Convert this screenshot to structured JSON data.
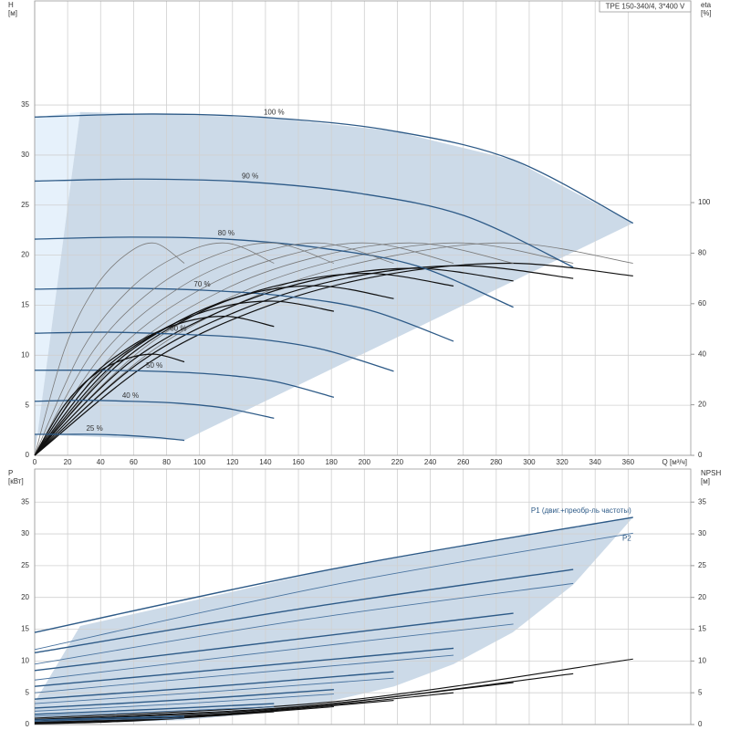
{
  "chart_data": [
    {
      "type": "line",
      "title": "TPE 150-340/4, 3*400 V",
      "ylabel": [
        "H",
        "[м]"
      ],
      "y2label": [
        "eta",
        "[%]"
      ],
      "xlabel": "Q [м³/ч]",
      "xlim": [
        0,
        398
      ],
      "xticks": [
        0,
        20,
        40,
        60,
        80,
        100,
        120,
        140,
        160,
        180,
        200,
        220,
        240,
        260,
        280,
        300,
        320,
        340,
        360
      ],
      "ylim": [
        0,
        45.4
      ],
      "yticks": [
        0,
        5,
        10,
        15,
        20,
        25,
        30,
        35
      ],
      "y2lim": [
        0,
        179.8
      ],
      "y2ticks": [
        0,
        20,
        40,
        60,
        80,
        100
      ],
      "grid": true,
      "curve_color": "#2d5a87",
      "eta_color": "#7a7a7a",
      "eta_total_color": "#111111",
      "envelope_color": "#c7d6e5",
      "min_zone_color": "#e6f1fb",
      "envelope": {
        "x": [
          0,
          27.6,
          72.6,
          145.2,
          217.8,
          290.4,
          363,
          90.8,
          0
        ],
        "values": [
          0,
          34.3,
          34.1,
          33.7,
          32.4,
          29.5,
          23.2,
          1.5,
          2.1
        ]
      },
      "min_zone": {
        "x": [
          0,
          0,
          27.6
        ],
        "values": [
          0,
          33.8,
          34.3
        ]
      },
      "series": [
        {
          "name": "100 %",
          "x": [
            0,
            72.6,
            145.2,
            217.8,
            290.4,
            363
          ],
          "values": [
            33.8,
            34.1,
            33.7,
            32.4,
            29.5,
            23.2
          ],
          "eta": [
            0,
            42,
            66,
            79,
            84,
            76
          ],
          "eta_total": [
            0,
            38,
            60,
            72,
            76,
            71
          ]
        },
        {
          "name": "90 %",
          "x": [
            0,
            65.3,
            130.7,
            196,
            261.4,
            326.7
          ],
          "values": [
            27.4,
            27.6,
            27.3,
            26.2,
            23.9,
            18.8
          ],
          "eta": [
            0,
            42,
            66,
            79,
            84,
            76
          ],
          "eta_total": [
            0,
            37.5,
            59,
            71,
            75,
            70
          ]
        },
        {
          "name": "80 %",
          "x": [
            0,
            58.1,
            116.2,
            174.2,
            232.3,
            290.4
          ],
          "values": [
            21.6,
            21.8,
            21.6,
            20.7,
            18.9,
            14.8
          ],
          "eta": [
            0,
            42,
            66,
            79,
            84,
            76
          ],
          "eta_total": [
            0,
            37,
            58,
            70,
            74,
            69
          ]
        },
        {
          "name": "70 %",
          "x": [
            0,
            50.8,
            101.6,
            152.5,
            203.3,
            254.1
          ],
          "values": [
            16.6,
            16.7,
            16.5,
            15.9,
            14.5,
            11.4
          ],
          "eta": [
            0,
            42,
            66,
            79,
            84,
            76
          ],
          "eta_total": [
            0,
            36,
            57,
            68,
            72,
            67
          ]
        },
        {
          "name": "60 %",
          "x": [
            0,
            43.6,
            87.1,
            130.7,
            174.2,
            217.8
          ],
          "values": [
            12.2,
            12.3,
            12.1,
            11.7,
            10.6,
            8.4
          ],
          "eta": [
            0,
            42,
            66,
            79,
            84,
            76
          ],
          "eta_total": [
            0,
            33.5,
            53,
            64,
            67,
            62
          ]
        },
        {
          "name": "50 %",
          "x": [
            0,
            36.3,
            72.6,
            108.9,
            145.2,
            181.5
          ],
          "values": [
            8.5,
            8.5,
            8.4,
            8.1,
            7.4,
            5.8
          ],
          "eta": [
            0,
            42,
            66,
            79,
            84,
            76
          ],
          "eta_total": [
            0,
            30.5,
            48,
            58,
            61,
            57
          ]
        },
        {
          "name": "40 %",
          "x": [
            0,
            29.0,
            58.1,
            87.1,
            116.2,
            145.2
          ],
          "values": [
            5.4,
            5.5,
            5.4,
            5.2,
            4.7,
            3.7
          ],
          "eta": [
            0,
            42,
            66,
            79,
            84,
            76
          ],
          "eta_total": [
            0,
            27.5,
            43,
            52,
            55,
            51
          ]
        },
        {
          "name": "25 %",
          "x": [
            0,
            18.2,
            36.3,
            54.5,
            72.6,
            90.8
          ],
          "values": [
            2.1,
            2.1,
            2.1,
            2.0,
            1.8,
            1.5
          ],
          "eta": [
            0,
            42,
            66,
            79,
            84,
            76
          ],
          "eta_total": [
            0,
            20,
            32,
            38,
            40,
            37
          ]
        }
      ]
    },
    {
      "type": "line",
      "ylabel": [
        "P",
        "[кВт]"
      ],
      "y2label": [
        "NPSH",
        "[м]"
      ],
      "xlim": [
        0,
        398
      ],
      "ylim": [
        0,
        40.2
      ],
      "yticks": [
        0,
        5,
        10,
        15,
        20,
        25,
        30,
        35
      ],
      "y2lim": [
        0,
        40.2
      ],
      "y2ticks": [
        0,
        5,
        10,
        15,
        20,
        25,
        30,
        35
      ],
      "grid": true,
      "p1_color": "#2d5a87",
      "p2_color": "#4a74a0",
      "npsh_color": "#111111",
      "envelope_color": "#c7d6e5",
      "annotations": [
        "P1 (двиг.+преобр-ль частоты)",
        "P2"
      ],
      "envelope": {
        "x": [
          0,
          0,
          27.6,
          181.5,
          363,
          326.7,
          290,
          254,
          218,
          181.5,
          145,
          91
        ],
        "values": [
          0,
          3.5,
          15.5,
          24.5,
          32.6,
          22,
          14.5,
          9.5,
          6,
          3.8,
          2.0,
          0.7
        ]
      },
      "series": [
        {
          "x": [
            0,
            181.5,
            363
          ],
          "p1": [
            14.5,
            24.5,
            32.6
          ],
          "p2": [
            11.8,
            22,
            30.1
          ],
          "npsh": [
            1.0,
            3.6,
            10.3
          ]
        },
        {
          "x": [
            0,
            163.4,
            326.7
          ],
          "p1": [
            11.3,
            18.3,
            24.4
          ],
          "p2": [
            9.5,
            16.5,
            22.2
          ],
          "npsh": [
            0.8,
            2.9,
            8.0
          ]
        },
        {
          "x": [
            0,
            145.2,
            290.4
          ],
          "p1": [
            8.5,
            13.0,
            17.5
          ],
          "p2": [
            7.0,
            11.5,
            15.8
          ],
          "npsh": [
            0.7,
            2.4,
            6.6
          ]
        },
        {
          "x": [
            0,
            127.1,
            254.1
          ],
          "p1": [
            6.0,
            9.0,
            12.0
          ],
          "p2": [
            5.0,
            8.0,
            10.9
          ],
          "npsh": [
            0.5,
            1.9,
            5.0
          ]
        },
        {
          "x": [
            0,
            108.9,
            217.8
          ],
          "p1": [
            4.0,
            6.0,
            8.3
          ],
          "p2": [
            3.3,
            5.2,
            7.3
          ],
          "npsh": [
            0.4,
            1.5,
            3.8
          ]
        },
        {
          "x": [
            0,
            90.8,
            181.5
          ],
          "p1": [
            2.6,
            3.9,
            5.5
          ],
          "p2": [
            2.1,
            3.3,
            4.8
          ],
          "npsh": [
            0.3,
            1.1,
            2.8
          ]
        },
        {
          "x": [
            0,
            72.6,
            145.2
          ],
          "p1": [
            1.6,
            2.4,
            3.3
          ],
          "p2": [
            1.3,
            2.0,
            2.8
          ],
          "npsh": [
            0.2,
            0.8,
            2.0
          ]
        },
        {
          "x": [
            0,
            45.4,
            90.8
          ],
          "p1": [
            0.7,
            1.0,
            1.3
          ],
          "p2": [
            0.5,
            0.8,
            1.0
          ],
          "npsh": [
            0.1,
            0.4,
            1.0
          ]
        }
      ]
    }
  ]
}
